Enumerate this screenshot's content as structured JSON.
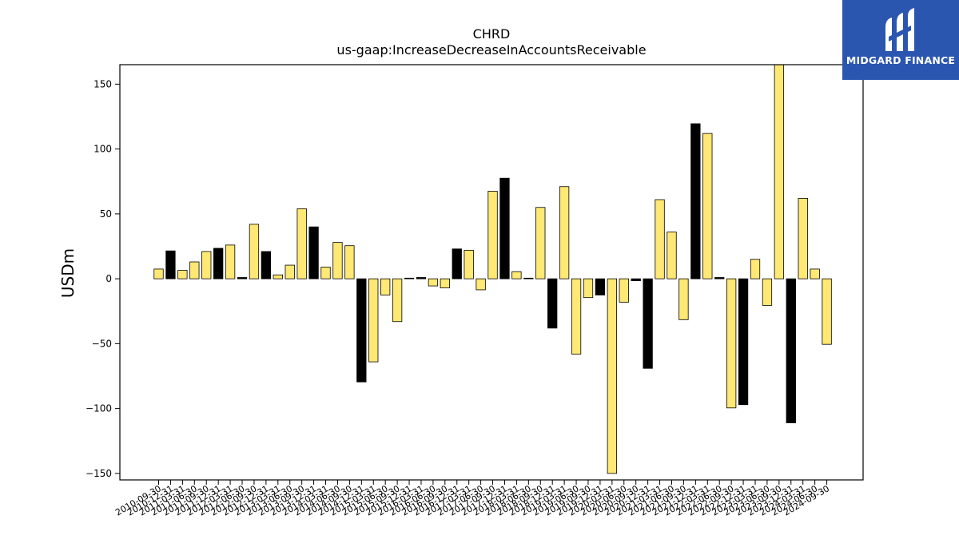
{
  "logo": {
    "text": "MIDGARD FINANCE",
    "icon": "midgard-logo-icon",
    "color": "#2b56b0"
  },
  "colors": {
    "positive": "#ffe873",
    "negative": "#000000",
    "edge": "#000000"
  },
  "chart_data": {
    "type": "bar",
    "title": "CHRD",
    "subtitle": "us-gaap:IncreaseDecreaseInAccountsReceivable",
    "ylabel": "USDm",
    "xlabel": "",
    "ylim": [
      -155,
      165
    ],
    "yticks": [
      -150,
      -100,
      -50,
      0,
      50,
      100,
      150
    ],
    "grid": false,
    "categories": [
      "2010-09-30",
      "2010-12-31",
      "2011-03-31",
      "2011-06-30",
      "2011-09-30",
      "2011-12-31",
      "2012-03-31",
      "2012-06-30",
      "2012-09-30",
      "2012-12-31",
      "2013-03-31",
      "2013-06-30",
      "2013-09-30",
      "2013-12-31",
      "2014-03-31",
      "2014-06-30",
      "2014-09-30",
      "2014-12-31",
      "2015-03-31",
      "2015-06-30",
      "2015-09-30",
      "2015-12-31",
      "2016-03-31",
      "2016-06-30",
      "2016-09-30",
      "2016-12-31",
      "2017-03-31",
      "2017-06-30",
      "2017-09-30",
      "2017-12-31",
      "2018-03-31",
      "2018-06-30",
      "2018-09-30",
      "2018-12-31",
      "2019-03-31",
      "2019-06-30",
      "2019-09-30",
      "2019-12-31",
      "2020-03-31",
      "2020-06-30",
      "2020-09-30",
      "2020-12-31",
      "2021-03-31",
      "2021-06-30",
      "2021-09-30",
      "2021-12-31",
      "2022-03-31",
      "2022-06-30",
      "2022-09-30",
      "2022-12-31",
      "2023-03-31",
      "2023-06-30",
      "2023-09-30",
      "2023-12-31",
      "2024-03-31",
      "2024-06-30",
      "2024-09-30"
    ],
    "values": [
      7.5,
      21.5,
      6.5,
      13,
      21,
      23.5,
      26,
      1,
      42,
      21,
      3,
      10.5,
      54,
      40,
      9,
      28,
      25.5,
      -79.5,
      -64,
      -12.5,
      -33,
      0.5,
      1,
      -5.5,
      -7,
      23,
      22,
      -8.5,
      67.5,
      77.5,
      5.5,
      0.5,
      55,
      -38,
      71,
      -58,
      -14.5,
      -12.5,
      -150,
      -18,
      -1.5,
      -69,
      61,
      36,
      -31.5,
      119.5,
      112,
      1,
      -99.5,
      -97,
      15,
      -20.5,
      166,
      -111,
      62,
      7.5,
      -50.5
    ],
    "bar_colors": [
      "y",
      "k",
      "y",
      "y",
      "y",
      "k",
      "y",
      "k",
      "y",
      "k",
      "y",
      "y",
      "y",
      "k",
      "y",
      "y",
      "y",
      "k",
      "y",
      "y",
      "y",
      "k",
      "k",
      "y",
      "y",
      "k",
      "y",
      "y",
      "y",
      "k",
      "y",
      "k",
      "y",
      "k",
      "y",
      "y",
      "y",
      "k",
      "y",
      "y",
      "k",
      "k",
      "y",
      "y",
      "y",
      "k",
      "y",
      "k",
      "y",
      "k",
      "y",
      "y",
      "y",
      "k",
      "y",
      "y",
      "y"
    ]
  }
}
